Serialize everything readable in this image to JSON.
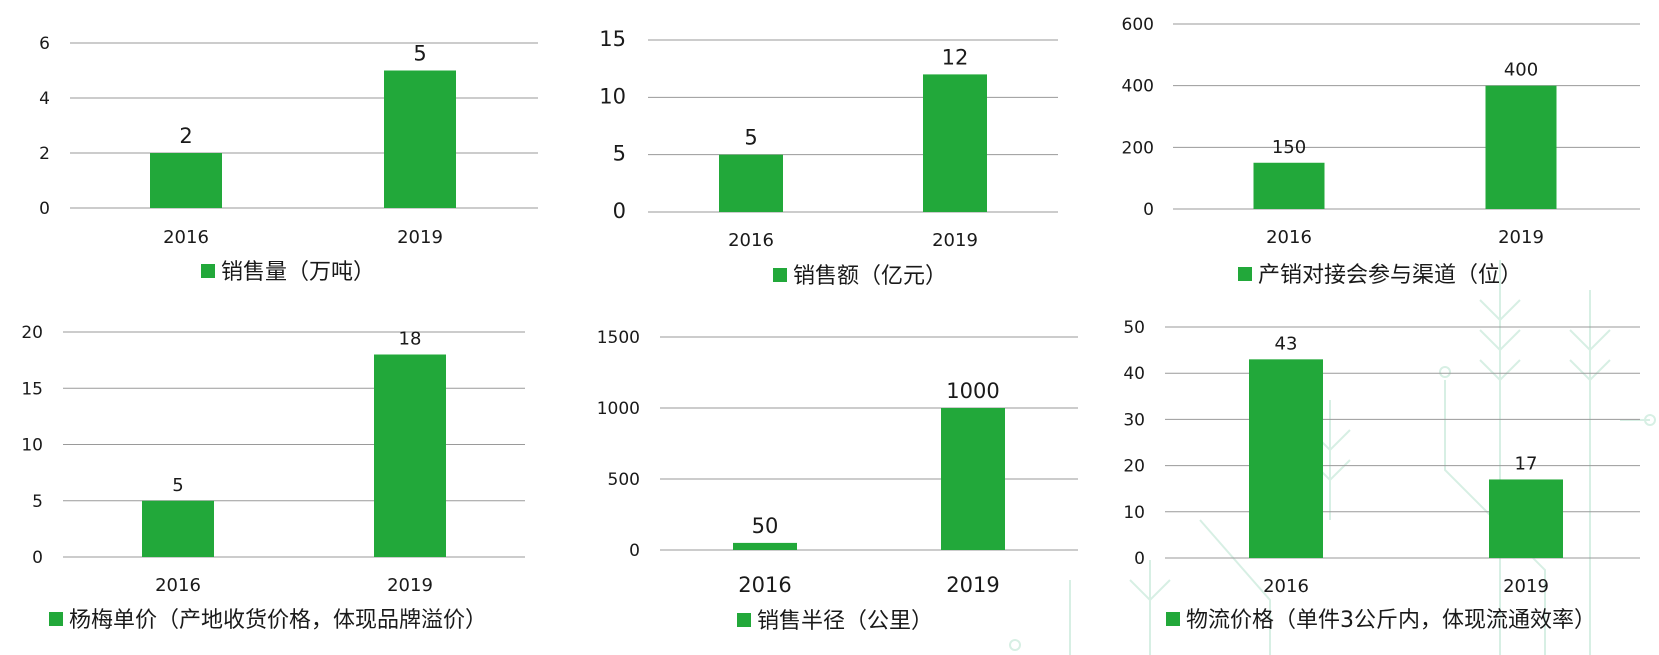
{
  "bar_color": "#22a83a",
  "grid_color": "#9a9a9a",
  "chart_data": [
    {
      "type": "bar",
      "categories": [
        "2016",
        "2019"
      ],
      "values": [
        2,
        5
      ],
      "data_labels": [
        "2",
        "5"
      ],
      "series": [
        {
          "name": "销售量（万吨）",
          "values": [
            2,
            5
          ]
        }
      ],
      "yticks": [
        "0",
        "2",
        "4",
        "6"
      ],
      "ylim": [
        0,
        6
      ],
      "grid": true,
      "legend_position": "bottom"
    },
    {
      "type": "bar",
      "categories": [
        "2016",
        "2019"
      ],
      "values": [
        5,
        12
      ],
      "data_labels": [
        "5",
        "12"
      ],
      "series": [
        {
          "name": "销售额（亿元）",
          "values": [
            5,
            12
          ]
        }
      ],
      "yticks": [
        "0",
        "5",
        "10",
        "15"
      ],
      "ylim": [
        0,
        15
      ],
      "grid": true,
      "legend_position": "bottom"
    },
    {
      "type": "bar",
      "categories": [
        "2016",
        "2019"
      ],
      "values": [
        150,
        400
      ],
      "data_labels": [
        "150",
        "400"
      ],
      "series": [
        {
          "name": "产销对接会参与渠道（位）",
          "values": [
            150,
            400
          ]
        }
      ],
      "yticks": [
        "0",
        "200",
        "400",
        "600"
      ],
      "ylim": [
        0,
        600
      ],
      "grid": true,
      "legend_position": "bottom"
    },
    {
      "type": "bar",
      "categories": [
        "2016",
        "2019"
      ],
      "values": [
        5,
        18
      ],
      "data_labels": [
        "5",
        "18"
      ],
      "series": [
        {
          "name": "杨梅单价（产地收货价格，体现品牌溢价）",
          "values": [
            5,
            18
          ]
        }
      ],
      "yticks": [
        "0",
        "5",
        "10",
        "15",
        "20"
      ],
      "ylim": [
        0,
        20
      ],
      "grid": true,
      "legend_position": "bottom"
    },
    {
      "type": "bar",
      "categories": [
        "2016",
        "2019"
      ],
      "values": [
        50,
        1000
      ],
      "data_labels": [
        "50",
        "1000"
      ],
      "series": [
        {
          "name": "销售半径（公里）",
          "values": [
            50,
            1000
          ]
        }
      ],
      "yticks": [
        "0",
        "500",
        "1000",
        "1500"
      ],
      "ylim": [
        0,
        1500
      ],
      "grid": true,
      "legend_position": "bottom"
    },
    {
      "type": "bar",
      "categories": [
        "2016",
        "2019"
      ],
      "values": [
        43,
        17
      ],
      "data_labels": [
        "43",
        "17"
      ],
      "series": [
        {
          "name": "物流价格（单件3公斤内，体现流通效率）",
          "values": [
            43,
            17
          ]
        }
      ],
      "yticks": [
        "0",
        "10",
        "20",
        "30",
        "40",
        "50"
      ],
      "ylim": [
        0,
        50
      ],
      "grid": true,
      "legend_position": "bottom"
    }
  ]
}
